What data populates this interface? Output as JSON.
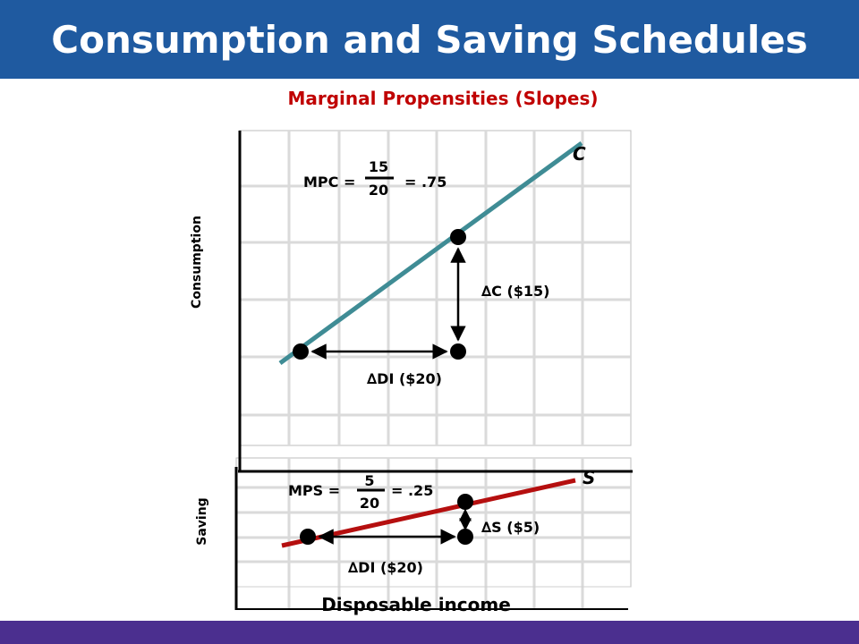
{
  "header": {
    "title": "Consumption and Saving Schedules"
  },
  "subtitle": "Marginal Propensities (Slopes)",
  "top_graph": {
    "y_axis_label": "Consumption",
    "line_label": "C",
    "formula_lhs": "MPC =",
    "numerator": "15",
    "denominator": "20",
    "result": "= .75",
    "delta_vertical": "C ($15)",
    "delta_horizontal": "DI ($20)",
    "line_color": "#3f8c95"
  },
  "bottom_graph": {
    "y_axis_label": "Saving",
    "line_label": "S",
    "formula_lhs": "MPS =",
    "numerator": "5",
    "denominator": "20",
    "result": "= .25",
    "delta_vertical": "S ($5)",
    "delta_horizontal": "DI ($20)",
    "line_color": "#b50f0f"
  },
  "x_axis_label": "Disposable income",
  "delta_symbol": "∆",
  "colors": {
    "header": "#1f5aa0",
    "subtitle": "#c00000",
    "footer": "#4b2f8f"
  }
}
